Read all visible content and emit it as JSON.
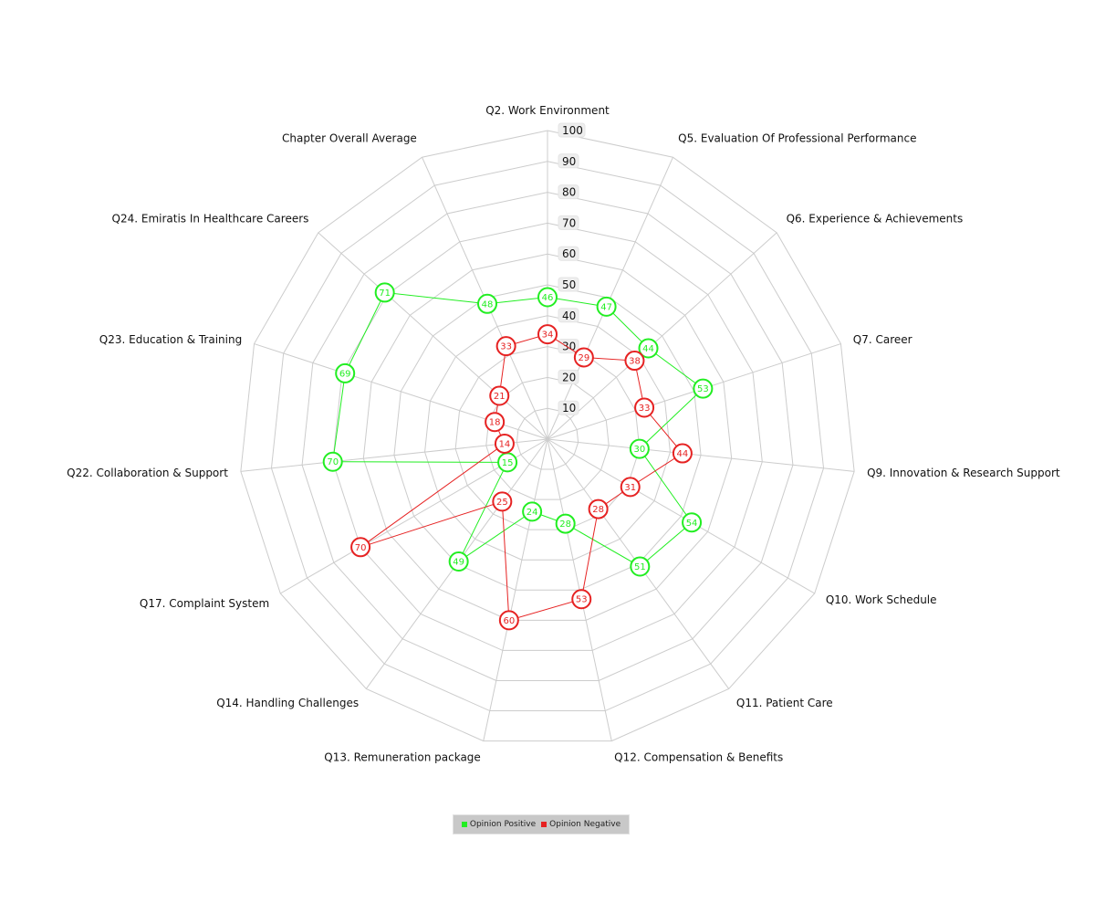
{
  "chart_data": {
    "type": "radar",
    "title": "",
    "axes": [
      "Q2. Work Environment",
      "Q5. Evaluation Of Professional Performance",
      "Q6. Experience & Achievements",
      "Q7. Career",
      "Q9. Innovation & Research Support",
      "Q10. Work Schedule",
      "Q11. Patient Care",
      "Q12. Compensation & Benefits",
      "Q13. Remuneration package",
      "Q14. Handling Challenges",
      "Q17. Complaint System",
      "Q22. Collaboration & Support",
      "Q23. Education & Training",
      "Q24. Emiratis In Healthcare Careers",
      "Chapter Overall Average"
    ],
    "series": [
      {
        "name": "Opinion Positive",
        "color": "#22ee22",
        "values": [
          46,
          47,
          44,
          53,
          30,
          54,
          51,
          28,
          24,
          49,
          15,
          70,
          69,
          71,
          48
        ]
      },
      {
        "name": "Opinion Negative",
        "color": "#e62222",
        "values": [
          34,
          29,
          38,
          33,
          44,
          31,
          28,
          53,
          60,
          25,
          70,
          14,
          18,
          21,
          33
        ]
      }
    ],
    "rlim": [
      0,
      100
    ],
    "ticks": [
      10,
      20,
      30,
      40,
      50,
      60,
      70,
      80,
      90,
      100
    ],
    "grid": true,
    "legend_position": "bottom"
  }
}
